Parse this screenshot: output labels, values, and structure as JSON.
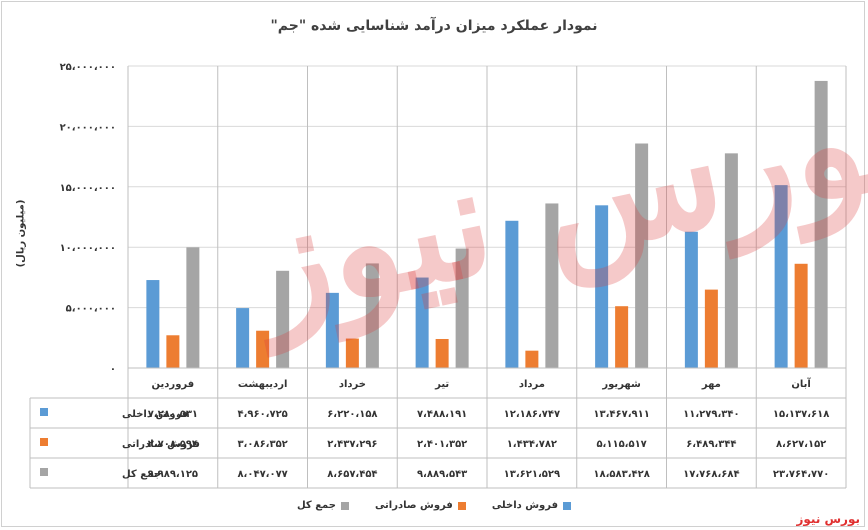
{
  "title": "نمودار عملکرد میزان درآمد شناسایی شده \"جم\"",
  "ylabel": "(میلیون ریال)",
  "source": "بورس نیوز",
  "watermark": "بورس نیوز",
  "colors": {
    "domestic": "#5b9bd5",
    "export": "#ed7d31",
    "total": "#a5a5a5"
  },
  "chart_data": {
    "type": "bar",
    "categories": [
      "آبان",
      "مهر",
      "شهریور",
      "مرداد",
      "تیر",
      "خرداد",
      "اردیبهشت",
      "فروردین"
    ],
    "ylim": [
      0,
      25000000
    ],
    "yticks": [
      0,
      5000000,
      10000000,
      15000000,
      20000000,
      25000000
    ],
    "ytick_labels": [
      "۰",
      "۵،۰۰۰،۰۰۰",
      "۱۰،۰۰۰،۰۰۰",
      "۱۵،۰۰۰،۰۰۰",
      "۲۰،۰۰۰،۰۰۰",
      "۲۵،۰۰۰،۰۰۰"
    ],
    "legend_position": "bottom",
    "series": [
      {
        "name": "فروش داخلی",
        "color": "#5b9bd5",
        "values": [
          15137618,
          11279340,
          13467911,
          12186747,
          7488191,
          6220158,
          4960725,
          7280531
        ],
        "labels": [
          "۱۵،۱۳۷،۶۱۸",
          "۱۱،۲۷۹،۳۴۰",
          "۱۳،۴۶۷،۹۱۱",
          "۱۲،۱۸۶،۷۴۷",
          "۷،۴۸۸،۱۹۱",
          "۶،۲۲۰،۱۵۸",
          "۴،۹۶۰،۷۲۵",
          "۷،۲۸۰،۵۳۱"
        ]
      },
      {
        "name": "فروش صادراتی",
        "color": "#ed7d31",
        "values": [
          8627152,
          6489344,
          5115517,
          1434782,
          2401352,
          2437296,
          3086352,
          2708594
        ],
        "labels": [
          "۸،۶۲۷،۱۵۲",
          "۶،۴۸۹،۳۴۴",
          "۵،۱۱۵،۵۱۷",
          "۱،۴۳۴،۷۸۲",
          "۲،۴۰۱،۳۵۲",
          "۲،۴۳۷،۲۹۶",
          "۳،۰۸۶،۳۵۲",
          "۲،۷۰۸،۵۹۴"
        ]
      },
      {
        "name": "جمع کل",
        "color": "#a5a5a5",
        "values": [
          23764770,
          17768684,
          18583428,
          13621529,
          9889543,
          8657454,
          8047077,
          9989125
        ],
        "labels": [
          "۲۳،۷۶۴،۷۷۰",
          "۱۷،۷۶۸،۶۸۴",
          "۱۸،۵۸۳،۴۲۸",
          "۱۳،۶۲۱،۵۲۹",
          "۹،۸۸۹،۵۴۳",
          "۸،۶۵۷،۴۵۴",
          "۸،۰۴۷،۰۷۷",
          "۹،۹۸۹،۱۲۵"
        ]
      }
    ]
  }
}
